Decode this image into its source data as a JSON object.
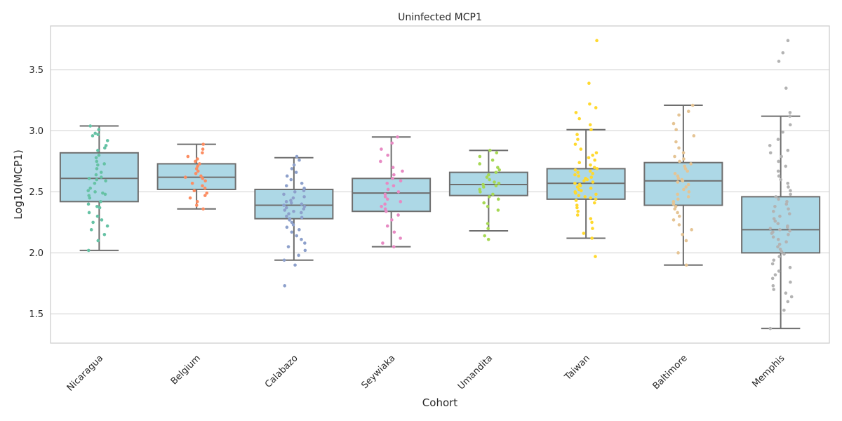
{
  "chart_data": {
    "type": "box",
    "title": "Uninfected MCP1",
    "xlabel": "Cohort",
    "ylabel": "Log10(MCP1)",
    "ylim": [
      1.26,
      3.86
    ],
    "yticks": [
      1.5,
      2.0,
      2.5,
      3.0,
      3.5
    ],
    "grid": true,
    "legend": "none",
    "box_color": "#add8e6",
    "box_edge_color": "#6e6e6e",
    "grid_color": "#cfcfcf",
    "categories": [
      "Nicaragua",
      "Belgium",
      "Calabazo",
      "Seywiaka",
      "Umandita",
      "Taiwan",
      "Baltimore",
      "Memphis"
    ],
    "series": [
      {
        "category": "Nicaragua",
        "color": "#66c2a5",
        "whisker_low": 2.02,
        "q1": 2.42,
        "median": 2.61,
        "q3": 2.82,
        "whisker_high": 3.04,
        "points": [
          3.04,
          3.01,
          2.98,
          2.97,
          2.96,
          2.92,
          2.88,
          2.86,
          2.84,
          2.8,
          2.78,
          2.75,
          2.73,
          2.72,
          2.69,
          2.66,
          2.64,
          2.62,
          2.61,
          2.6,
          2.59,
          2.57,
          2.53,
          2.51,
          2.5,
          2.49,
          2.48,
          2.47,
          2.45,
          2.42,
          2.4,
          2.38,
          2.37,
          2.33,
          2.3,
          2.27,
          2.25,
          2.22,
          2.19,
          2.15,
          2.1,
          2.02
        ]
      },
      {
        "category": "Belgium",
        "color": "#fc8d62",
        "whisker_low": 2.36,
        "q1": 2.52,
        "median": 2.62,
        "q3": 2.73,
        "whisker_high": 2.89,
        "points": [
          2.89,
          2.85,
          2.82,
          2.79,
          2.77,
          2.75,
          2.73,
          2.71,
          2.69,
          2.67,
          2.65,
          2.63,
          2.62,
          2.61,
          2.59,
          2.57,
          2.55,
          2.53,
          2.51,
          2.49,
          2.47,
          2.45,
          2.42,
          2.39,
          2.36
        ]
      },
      {
        "category": "Calabazo",
        "color": "#8da0cb",
        "whisker_low": 1.94,
        "q1": 2.28,
        "median": 2.39,
        "q3": 2.52,
        "whisker_high": 2.78,
        "points": [
          2.79,
          2.76,
          2.72,
          2.69,
          2.66,
          2.63,
          2.6,
          2.57,
          2.55,
          2.53,
          2.51,
          2.5,
          2.48,
          2.46,
          2.45,
          2.43,
          2.42,
          2.41,
          2.4,
          2.39,
          2.38,
          2.37,
          2.36,
          2.35,
          2.34,
          2.33,
          2.32,
          2.3,
          2.29,
          2.28,
          2.27,
          2.25,
          2.23,
          2.21,
          2.19,
          2.17,
          2.14,
          2.11,
          2.08,
          2.05,
          2.02,
          1.98,
          1.94,
          1.9,
          1.73
        ]
      },
      {
        "category": "Seywiaka",
        "color": "#e78ac3",
        "whisker_low": 2.05,
        "q1": 2.34,
        "median": 2.49,
        "q3": 2.61,
        "whisker_high": 2.95,
        "points": [
          2.95,
          2.9,
          2.85,
          2.8,
          2.75,
          2.7,
          2.67,
          2.64,
          2.61,
          2.59,
          2.57,
          2.55,
          2.52,
          2.5,
          2.48,
          2.46,
          2.44,
          2.42,
          2.4,
          2.38,
          2.36,
          2.34,
          2.31,
          2.27,
          2.22,
          2.17,
          2.12,
          2.08,
          2.05
        ]
      },
      {
        "category": "Umandita",
        "color": "#a6d854",
        "whisker_low": 2.18,
        "q1": 2.47,
        "median": 2.56,
        "q3": 2.66,
        "whisker_high": 2.84,
        "points": [
          2.84,
          2.82,
          2.79,
          2.76,
          2.73,
          2.7,
          2.68,
          2.66,
          2.64,
          2.62,
          2.6,
          2.58,
          2.57,
          2.56,
          2.55,
          2.54,
          2.52,
          2.5,
          2.48,
          2.46,
          2.44,
          2.41,
          2.38,
          2.35,
          2.24,
          2.2,
          2.14,
          2.11
        ]
      },
      {
        "category": "Taiwan",
        "color": "#ffd92f",
        "whisker_low": 2.12,
        "q1": 2.44,
        "median": 2.57,
        "q3": 2.69,
        "whisker_high": 3.01,
        "points": [
          3.74,
          3.39,
          3.22,
          3.19,
          3.15,
          3.1,
          3.05,
          3.01,
          2.97,
          2.93,
          2.89,
          2.85,
          2.82,
          2.8,
          2.78,
          2.76,
          2.74,
          2.72,
          2.7,
          2.69,
          2.68,
          2.67,
          2.66,
          2.65,
          2.64,
          2.63,
          2.62,
          2.61,
          2.6,
          2.59,
          2.58,
          2.57,
          2.56,
          2.55,
          2.54,
          2.53,
          2.52,
          2.51,
          2.5,
          2.49,
          2.48,
          2.47,
          2.46,
          2.45,
          2.44,
          2.43,
          2.41,
          2.39,
          2.37,
          2.34,
          2.31,
          2.28,
          2.25,
          2.2,
          2.16,
          2.12,
          1.97
        ]
      },
      {
        "category": "Baltimore",
        "color": "#e5c494",
        "whisker_low": 1.9,
        "q1": 2.39,
        "median": 2.59,
        "q3": 2.74,
        "whisker_high": 3.21,
        "points": [
          3.21,
          3.16,
          3.13,
          3.06,
          3.01,
          2.96,
          2.91,
          2.86,
          2.82,
          2.79,
          2.77,
          2.75,
          2.73,
          2.71,
          2.69,
          2.67,
          2.65,
          2.63,
          2.61,
          2.6,
          2.59,
          2.58,
          2.56,
          2.54,
          2.52,
          2.5,
          2.48,
          2.46,
          2.44,
          2.42,
          2.4,
          2.38,
          2.36,
          2.33,
          2.3,
          2.27,
          2.23,
          2.19,
          2.15,
          2.1,
          2.0,
          1.9
        ]
      },
      {
        "category": "Memphis",
        "color": "#b3b3b3",
        "whisker_low": 1.38,
        "q1": 2.0,
        "median": 2.19,
        "q3": 2.46,
        "whisker_high": 3.12,
        "points": [
          3.74,
          3.64,
          3.57,
          3.35,
          3.15,
          3.12,
          3.05,
          2.99,
          2.93,
          2.88,
          2.84,
          2.82,
          2.79,
          2.75,
          2.71,
          2.67,
          2.63,
          2.6,
          2.57,
          2.54,
          2.51,
          2.48,
          2.46,
          2.44,
          2.42,
          2.4,
          2.38,
          2.36,
          2.34,
          2.32,
          2.3,
          2.28,
          2.26,
          2.24,
          2.22,
          2.21,
          2.2,
          2.19,
          2.18,
          2.17,
          2.16,
          2.15,
          2.13,
          2.11,
          2.09,
          2.07,
          2.05,
          2.03,
          2.01,
          1.99,
          1.97,
          1.94,
          1.91,
          1.88,
          1.85,
          1.82,
          1.79,
          1.76,
          1.73,
          1.7,
          1.67,
          1.64,
          1.6,
          1.53,
          1.38
        ]
      }
    ]
  }
}
